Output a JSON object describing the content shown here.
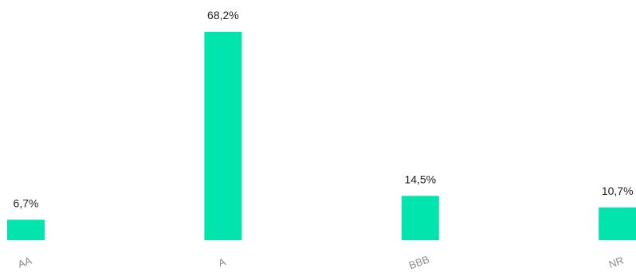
{
  "chart_data": {
    "type": "bar",
    "categories": [
      "AA",
      "A",
      "BBB",
      "NR"
    ],
    "values": [
      6.7,
      68.2,
      14.5,
      10.7
    ],
    "value_labels": [
      "6,7%",
      "68,2%",
      "14,5%",
      "10,7%"
    ],
    "unit": "%",
    "title": "",
    "xlabel": "",
    "ylabel": "",
    "ylim": [
      0,
      68.2
    ],
    "grid": false,
    "legend": "none",
    "bar_color": "#00E5AE",
    "label_color": "#222222",
    "tick_color": "#8A8A8A"
  }
}
